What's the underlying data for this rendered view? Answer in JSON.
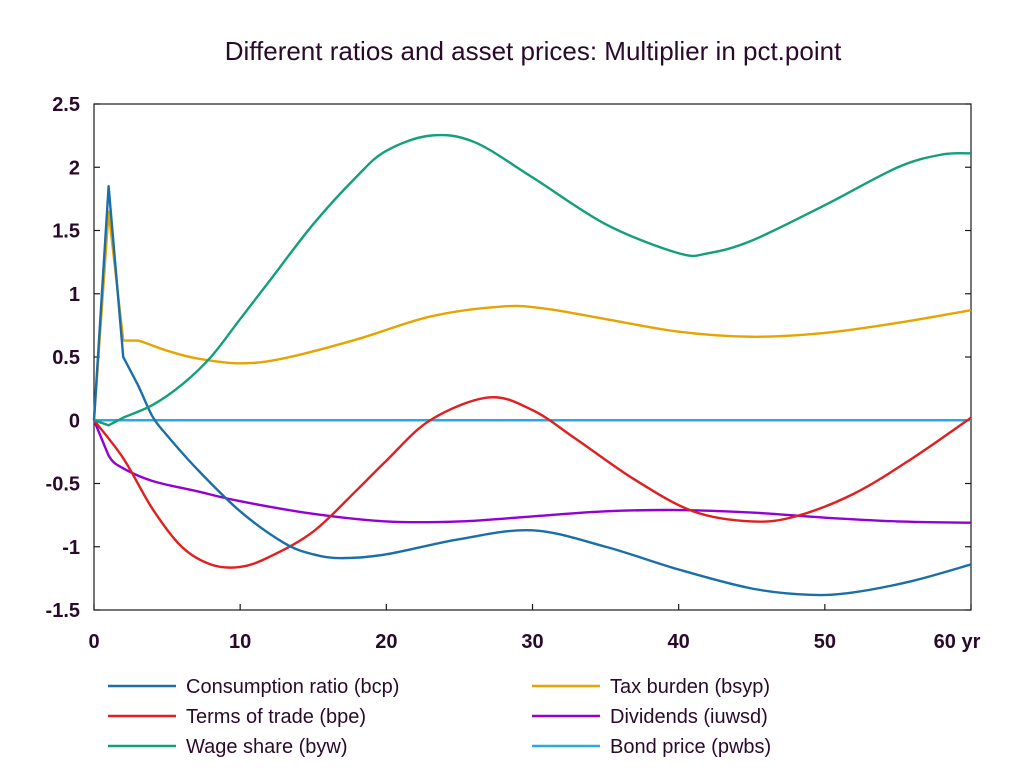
{
  "chart_data": {
    "type": "line",
    "title": "Different ratios and asset prices: Multiplier in pct.point",
    "xlabel": "",
    "ylabel": "",
    "xlim": [
      0,
      60
    ],
    "ylim": [
      -1.5,
      2.5
    ],
    "x_ticks": [
      0,
      10,
      20,
      30,
      40,
      50,
      60
    ],
    "x_tick_labels": [
      "0",
      "10",
      "20",
      "30",
      "40",
      "50",
      "60 yr"
    ],
    "y_ticks": [
      2.5,
      2,
      1.5,
      1,
      0.5,
      0,
      -0.5,
      -1,
      -1.5
    ],
    "y_tick_labels": [
      "2.5",
      "2",
      "1.5",
      "1",
      "0.5",
      "0",
      "-0.5",
      "-1",
      "-1.5"
    ],
    "grid": false,
    "legend_position": "bottom",
    "series": [
      {
        "name": "Consumption ratio (bcp)",
        "color": "#1a6fa8",
        "points": [
          [
            0,
            0
          ],
          [
            1,
            1.85
          ],
          [
            2,
            0.5
          ],
          [
            3,
            0.28
          ],
          [
            4,
            0.03
          ],
          [
            5,
            -0.12
          ],
          [
            7,
            -0.38
          ],
          [
            10,
            -0.72
          ],
          [
            13,
            -0.97
          ],
          [
            15,
            -1.06
          ],
          [
            17,
            -1.09
          ],
          [
            20,
            -1.06
          ],
          [
            25,
            -0.94
          ],
          [
            30,
            -0.87
          ],
          [
            35,
            -1.0
          ],
          [
            40,
            -1.18
          ],
          [
            45,
            -1.33
          ],
          [
            49,
            -1.38
          ],
          [
            52,
            -1.36
          ],
          [
            56,
            -1.27
          ],
          [
            60,
            -1.14
          ]
        ]
      },
      {
        "name": "Tax burden (bsyp)",
        "color": "#e6a400",
        "points": [
          [
            0,
            0
          ],
          [
            1,
            1.65
          ],
          [
            2,
            0.63
          ],
          [
            3,
            0.63
          ],
          [
            5,
            0.55
          ],
          [
            7,
            0.49
          ],
          [
            10,
            0.45
          ],
          [
            13,
            0.49
          ],
          [
            18,
            0.64
          ],
          [
            23,
            0.82
          ],
          [
            28,
            0.9
          ],
          [
            31,
            0.88
          ],
          [
            35,
            0.8
          ],
          [
            40,
            0.7
          ],
          [
            45,
            0.66
          ],
          [
            50,
            0.69
          ],
          [
            55,
            0.77
          ],
          [
            60,
            0.87
          ]
        ]
      },
      {
        "name": "Terms of trade (bpe)",
        "color": "#e02020",
        "points": [
          [
            0,
            0
          ],
          [
            2,
            -0.3
          ],
          [
            4,
            -0.7
          ],
          [
            6,
            -1.0
          ],
          [
            8,
            -1.14
          ],
          [
            10,
            -1.16
          ],
          [
            12,
            -1.08
          ],
          [
            15,
            -0.88
          ],
          [
            18,
            -0.55
          ],
          [
            20,
            -0.32
          ],
          [
            23,
            0.0
          ],
          [
            27,
            0.18
          ],
          [
            30,
            0.08
          ],
          [
            33,
            -0.15
          ],
          [
            37,
            -0.47
          ],
          [
            41,
            -0.72
          ],
          [
            45,
            -0.8
          ],
          [
            48,
            -0.76
          ],
          [
            52,
            -0.58
          ],
          [
            56,
            -0.3
          ],
          [
            60,
            0.02
          ]
        ]
      },
      {
        "name": "Dividends (iuwsd)",
        "color": "#9400d3",
        "points": [
          [
            0,
            0
          ],
          [
            1,
            -0.28
          ],
          [
            2,
            -0.38
          ],
          [
            4,
            -0.48
          ],
          [
            7,
            -0.56
          ],
          [
            10,
            -0.64
          ],
          [
            15,
            -0.74
          ],
          [
            20,
            -0.8
          ],
          [
            25,
            -0.8
          ],
          [
            30,
            -0.76
          ],
          [
            35,
            -0.72
          ],
          [
            40,
            -0.71
          ],
          [
            45,
            -0.73
          ],
          [
            50,
            -0.77
          ],
          [
            55,
            -0.8
          ],
          [
            60,
            -0.81
          ]
        ]
      },
      {
        "name": "Wage share (byw)",
        "color": "#139f7a",
        "points": [
          [
            0,
            0
          ],
          [
            1,
            -0.04
          ],
          [
            2,
            0.02
          ],
          [
            4,
            0.12
          ],
          [
            6,
            0.28
          ],
          [
            8,
            0.5
          ],
          [
            10,
            0.8
          ],
          [
            12,
            1.1
          ],
          [
            15,
            1.55
          ],
          [
            18,
            1.93
          ],
          [
            20,
            2.13
          ],
          [
            23,
            2.25
          ],
          [
            26,
            2.2
          ],
          [
            30,
            1.92
          ],
          [
            35,
            1.55
          ],
          [
            40,
            1.32
          ],
          [
            42,
            1.32
          ],
          [
            45,
            1.42
          ],
          [
            50,
            1.7
          ],
          [
            55,
            2.0
          ],
          [
            58,
            2.1
          ],
          [
            60,
            2.11
          ]
        ]
      },
      {
        "name": "Bond price (pwbs)",
        "color": "#2aa8e0",
        "points": [
          [
            0,
            0
          ],
          [
            60,
            0
          ]
        ]
      }
    ]
  }
}
